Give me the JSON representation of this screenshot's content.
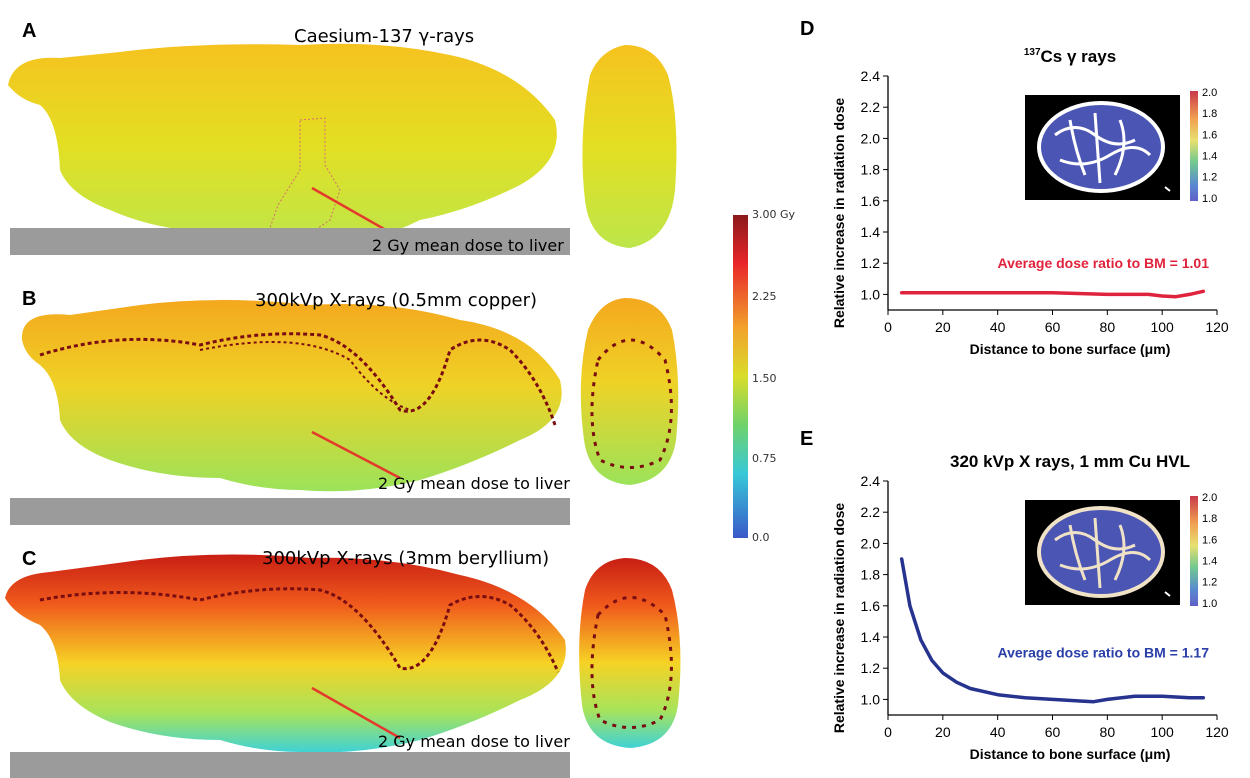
{
  "panels": {
    "A": {
      "letter": "A",
      "title": "Caesium-137 γ-rays",
      "annotation": "2 Gy mean dose to liver"
    },
    "B": {
      "letter": "B",
      "title": "300kVp X-rays (0.5mm copper)",
      "annotation": "2 Gy mean dose to liver"
    },
    "C": {
      "letter": "C",
      "title": "300kVp X-rays (3mm beryllium)",
      "annotation": "2 Gy mean dose to liver"
    },
    "D": {
      "letter": "D"
    },
    "E": {
      "letter": "E"
    }
  },
  "colorbar": {
    "ticks": [
      "3.00 Gy",
      "2.25",
      "1.50",
      "0.75",
      "0.0"
    ],
    "colors": [
      "#8b1a1a",
      "#e8262a",
      "#f2a22c",
      "#d9dd2a",
      "#6fd26a",
      "#38c9d8",
      "#3a58c9"
    ]
  },
  "inset_colorbar": {
    "ticks": [
      "2.0",
      "1.8",
      "1.6",
      "1.4",
      "1.2",
      "1.0"
    ]
  },
  "chart_data": [
    {
      "type": "line",
      "title_sup": "137",
      "title": "Cs γ rays",
      "xlabel": "Distance to bone surface (μm)",
      "ylabel": "Relative increase in radiation dose",
      "xlim": [
        0,
        120
      ],
      "ylim": [
        0.9,
        2.4
      ],
      "xticks": [
        "0",
        "20",
        "40",
        "60",
        "80",
        "100",
        "120"
      ],
      "yticks": [
        "1.0",
        "1.2",
        "1.4",
        "1.6",
        "1.8",
        "2.0",
        "2.2",
        "2.4"
      ],
      "series": [
        {
          "color": "#e0233c",
          "x": [
            5,
            20,
            40,
            60,
            80,
            95,
            100,
            105,
            110,
            115
          ],
          "y": [
            1.01,
            1.01,
            1.01,
            1.01,
            1.0,
            1.0,
            0.99,
            0.985,
            1.0,
            1.02
          ]
        }
      ],
      "annotation": "Average dose ratio to BM = 1.01",
      "annotation_color": "#e0233c"
    },
    {
      "type": "line",
      "title": "320 kVp X rays, 1 mm Cu HVL",
      "xlabel": "Distance to bone surface (μm)",
      "ylabel": "Relative increase in radiation dose",
      "xlim": [
        0,
        120
      ],
      "ylim": [
        0.9,
        2.4
      ],
      "xticks": [
        "0",
        "20",
        "40",
        "60",
        "80",
        "100",
        "120"
      ],
      "yticks": [
        "1.0",
        "1.2",
        "1.4",
        "1.6",
        "1.8",
        "2.0",
        "2.2",
        "2.4"
      ],
      "series": [
        {
          "color": "#26338f",
          "x": [
            5,
            8,
            12,
            16,
            20,
            25,
            30,
            40,
            50,
            60,
            70,
            75,
            80,
            90,
            100,
            110,
            115
          ],
          "y": [
            1.9,
            1.6,
            1.38,
            1.25,
            1.17,
            1.11,
            1.07,
            1.03,
            1.01,
            1.0,
            0.99,
            0.985,
            1.0,
            1.02,
            1.02,
            1.01,
            1.01
          ]
        }
      ],
      "annotation": "Average dose ratio to BM = 1.17",
      "annotation_color": "#2a3ea8"
    }
  ]
}
